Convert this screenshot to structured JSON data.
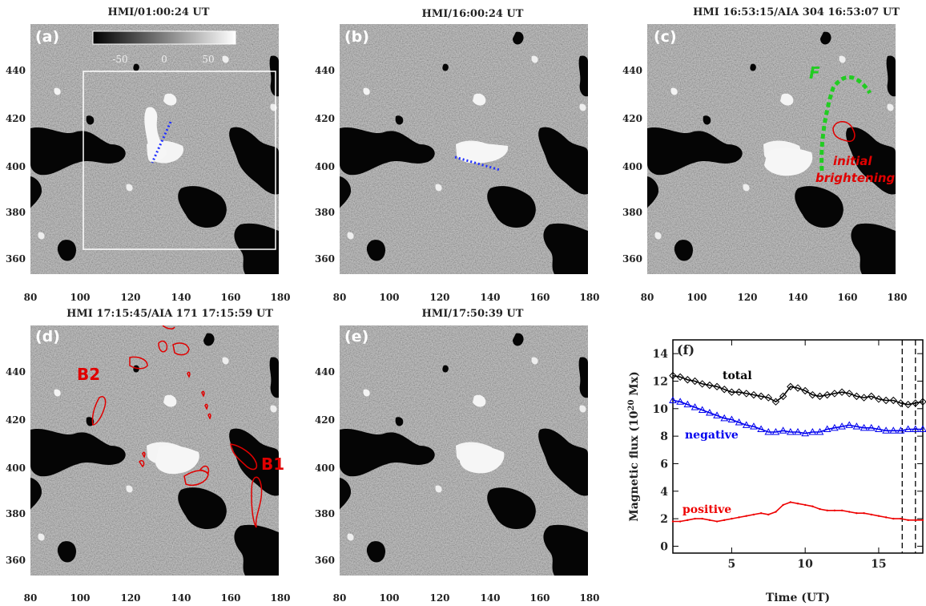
{
  "panels": [
    {
      "id": "a",
      "label": "(a)",
      "title": "HMI/01:00:24 UT"
    },
    {
      "id": "b",
      "label": "(b)",
      "title": "HMI/16:00:24 UT"
    },
    {
      "id": "c",
      "label": "(c)",
      "title": "HMI 16:53:15/AIA 304 16:53:07 UT"
    },
    {
      "id": "d",
      "label": "(d)",
      "title": "HMI 17:15:45/AIA 171 17:15:59 UT"
    },
    {
      "id": "e",
      "label": "(e)",
      "title": "HMI/17:50:39 UT"
    }
  ],
  "image_axes": {
    "x_ticks": [
      "80",
      "100",
      "120",
      "140",
      "160",
      "180"
    ],
    "y_ticks": [
      "440",
      "420",
      "400",
      "380",
      "360"
    ]
  },
  "colorbar": {
    "ticks": [
      "-50",
      "0",
      "50"
    ]
  },
  "annotations": {
    "c_filament": "F",
    "c_initial": "initial",
    "c_brightening": "brightening",
    "d_b1": "B1",
    "d_b2": "B2"
  },
  "colors": {
    "total": "#000000",
    "negative": "#0000ee",
    "positive": "#ee0000",
    "filament": "#22cc22",
    "contour": "#e00000",
    "slit": "#2030ff"
  },
  "chart_data": {
    "type": "line",
    "label": "(f)",
    "xlabel": "Time (UT)",
    "ylabel_main": "Magnetic flux (10",
    "ylabel_sup": "20",
    "ylabel_tail": " Mx)",
    "xlim": [
      1.0,
      18.0
    ],
    "ylim": [
      -0.5,
      15.0
    ],
    "x_ticks": [
      5,
      10,
      15
    ],
    "y_ticks": [
      0,
      2,
      4,
      6,
      8,
      10,
      12,
      14
    ],
    "vlines": [
      16.6,
      17.5
    ],
    "series": [
      {
        "name": "total",
        "color": "#000000",
        "marker": "diamond",
        "x": [
          1.0,
          1.5,
          2.0,
          2.5,
          3.0,
          3.5,
          4.0,
          4.5,
          5.0,
          5.5,
          6.0,
          6.5,
          7.0,
          7.5,
          8.0,
          8.5,
          9.0,
          9.5,
          10.0,
          10.5,
          11.0,
          11.5,
          12.0,
          12.5,
          13.0,
          13.5,
          14.0,
          14.5,
          15.0,
          15.5,
          16.0,
          16.5,
          17.0,
          17.5,
          18.0
        ],
        "y": [
          12.4,
          12.3,
          12.1,
          12.0,
          11.8,
          11.7,
          11.6,
          11.4,
          11.2,
          11.2,
          11.1,
          11.0,
          10.9,
          10.8,
          10.5,
          10.9,
          11.6,
          11.5,
          11.3,
          11.0,
          10.9,
          11.0,
          11.1,
          11.2,
          11.1,
          10.9,
          10.8,
          10.9,
          10.7,
          10.6,
          10.6,
          10.4,
          10.3,
          10.4,
          10.5
        ]
      },
      {
        "name": "negative",
        "color": "#0000ee",
        "marker": "triangle",
        "x": [
          1.0,
          1.5,
          2.0,
          2.5,
          3.0,
          3.5,
          4.0,
          4.5,
          5.0,
          5.5,
          6.0,
          6.5,
          7.0,
          7.5,
          8.0,
          8.5,
          9.0,
          9.5,
          10.0,
          10.5,
          11.0,
          11.5,
          12.0,
          12.5,
          13.0,
          13.5,
          14.0,
          14.5,
          15.0,
          15.5,
          16.0,
          16.5,
          17.0,
          17.5,
          18.0
        ],
        "y": [
          10.6,
          10.5,
          10.3,
          10.1,
          9.9,
          9.7,
          9.5,
          9.3,
          9.2,
          9.0,
          8.8,
          8.7,
          8.5,
          8.3,
          8.3,
          8.4,
          8.3,
          8.3,
          8.2,
          8.3,
          8.3,
          8.5,
          8.6,
          8.7,
          8.8,
          8.7,
          8.6,
          8.6,
          8.5,
          8.4,
          8.4,
          8.4,
          8.5,
          8.5,
          8.5
        ]
      },
      {
        "name": "positive",
        "color": "#ee0000",
        "marker": "none",
        "x": [
          1.0,
          1.5,
          2.0,
          2.5,
          3.0,
          3.5,
          4.0,
          4.5,
          5.0,
          5.5,
          6.0,
          6.5,
          7.0,
          7.5,
          8.0,
          8.5,
          9.0,
          9.5,
          10.0,
          10.5,
          11.0,
          11.5,
          12.0,
          12.5,
          13.0,
          13.5,
          14.0,
          14.5,
          15.0,
          15.5,
          16.0,
          16.5,
          17.0,
          17.5,
          18.0
        ],
        "y": [
          1.8,
          1.8,
          1.9,
          2.0,
          2.0,
          1.9,
          1.8,
          1.9,
          2.0,
          2.1,
          2.2,
          2.3,
          2.4,
          2.3,
          2.5,
          3.0,
          3.2,
          3.1,
          3.0,
          2.9,
          2.7,
          2.6,
          2.6,
          2.6,
          2.5,
          2.4,
          2.4,
          2.3,
          2.2,
          2.1,
          2.0,
          2.0,
          1.9,
          1.9,
          1.9
        ]
      }
    ]
  }
}
